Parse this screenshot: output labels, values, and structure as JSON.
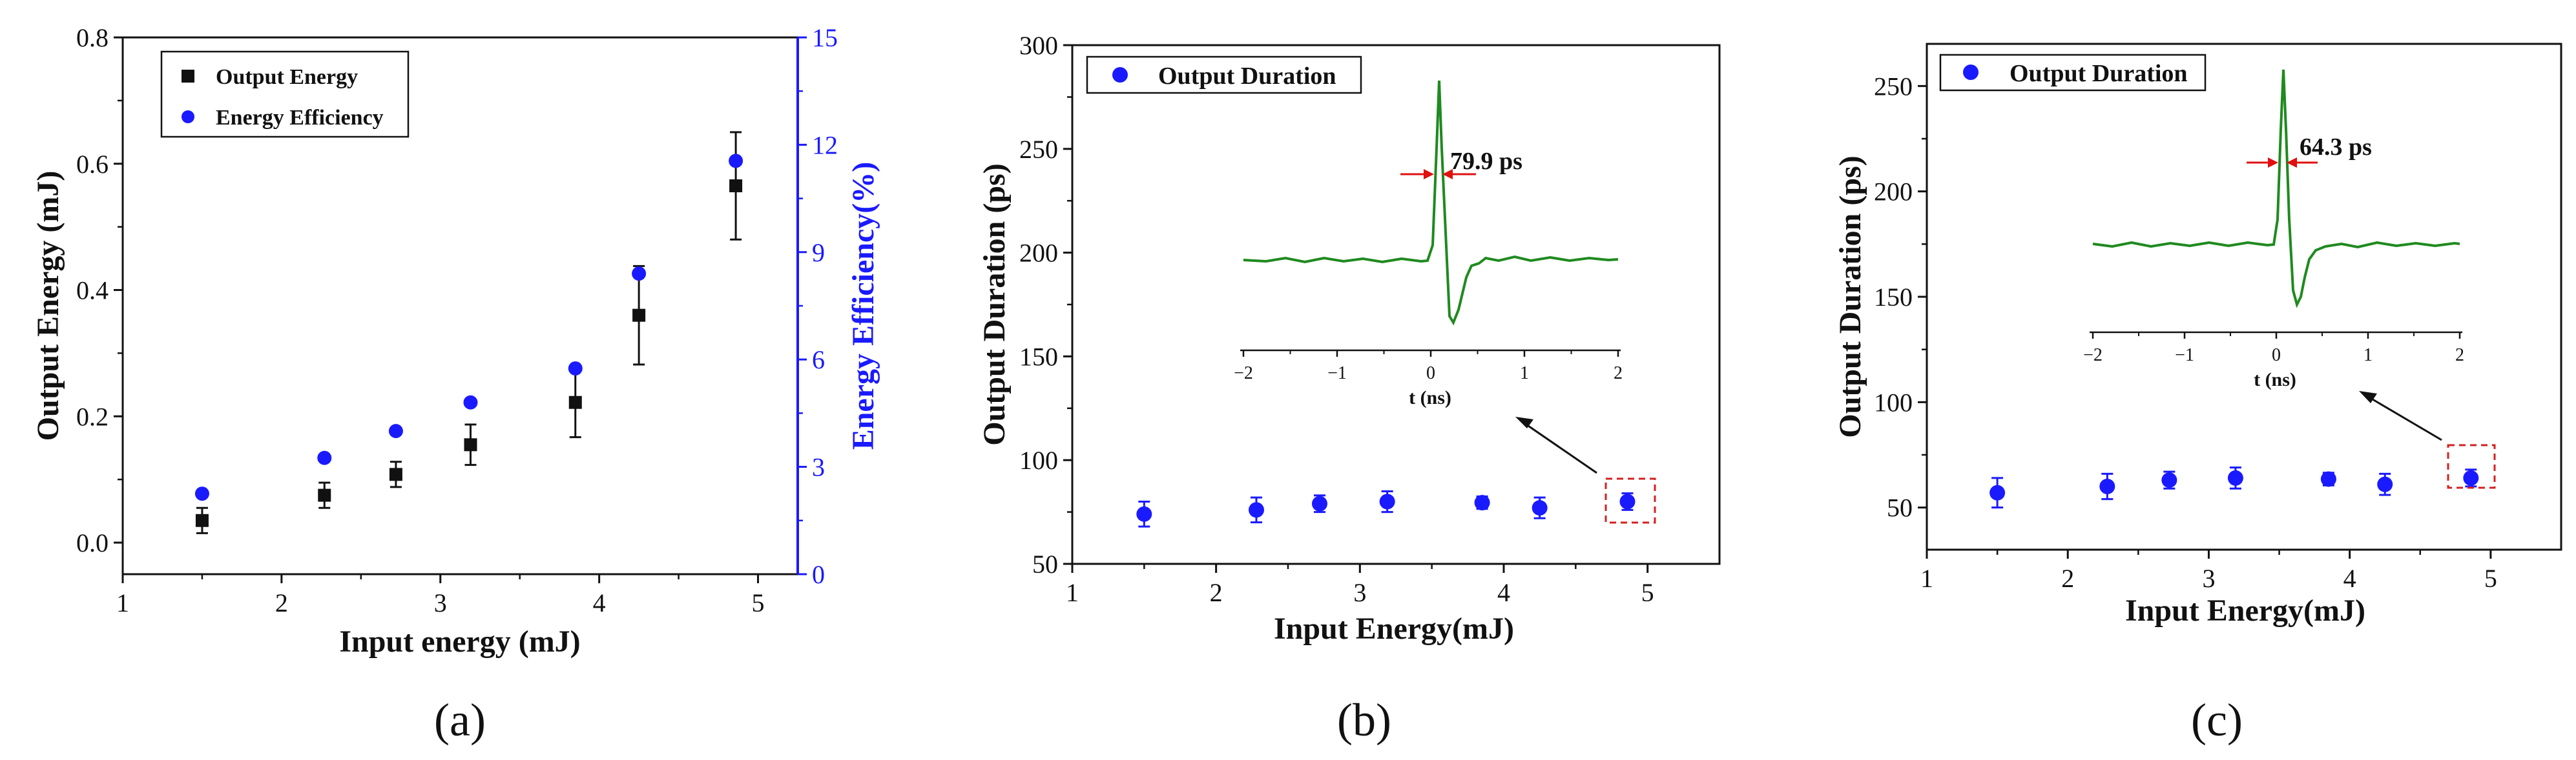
{
  "colors": {
    "axis": "#111111",
    "blue": "#1a1aff",
    "black": "#111111",
    "green": "#1f8a1f",
    "red": "#e01010",
    "dashed_box": "#d42020"
  },
  "chart_data": [
    {
      "panel": "a",
      "type": "scatter",
      "caption": "(a)",
      "xlabel": "Input energy (mJ)",
      "ylabel": "Output Energy (mJ)",
      "y2label": "Energy Efficiency(%)",
      "xlim": [
        1,
        5.25
      ],
      "ylim": [
        -0.05,
        0.8
      ],
      "y2lim": [
        0,
        15
      ],
      "xticks": [
        "1",
        "2",
        "3",
        "4",
        "5"
      ],
      "yticks": [
        "0.0",
        "0.2",
        "0.4",
        "0.6",
        "0.8"
      ],
      "y2ticks": [
        "0",
        "3",
        "6",
        "9",
        "12",
        "15"
      ],
      "legend": [
        "Output Energy",
        "Energy Efficiency"
      ],
      "legend_position": "top-left",
      "series": [
        {
          "name": "Output Energy",
          "marker": "square",
          "color": "#111111",
          "x": [
            1.5,
            2.27,
            2.72,
            3.19,
            3.85,
            4.25,
            4.86
          ],
          "y": [
            0.035,
            0.075,
            0.108,
            0.155,
            0.222,
            0.36,
            0.565
          ],
          "err": [
            0.02,
            0.02,
            0.02,
            0.032,
            0.055,
            0.078,
            0.085
          ]
        },
        {
          "name": "Energy Efficiency",
          "marker": "circle",
          "color": "#1a1aff",
          "axis": "right",
          "x": [
            1.5,
            2.27,
            2.72,
            3.19,
            3.85,
            4.25,
            4.86
          ],
          "y": [
            2.25,
            3.25,
            4.0,
            4.8,
            5.75,
            8.4,
            11.55
          ]
        }
      ]
    },
    {
      "panel": "b",
      "type": "scatter",
      "caption": "(b)",
      "xlabel": "Input Energy(mJ)",
      "ylabel": "Output Duration (ps)",
      "xlim": [
        1,
        5.5
      ],
      "ylim": [
        50,
        300
      ],
      "xticks": [
        "1",
        "2",
        "3",
        "4",
        "5"
      ],
      "yticks": [
        "50",
        "100",
        "150",
        "200",
        "250",
        "300"
      ],
      "legend": [
        "Output Duration"
      ],
      "legend_position": "top-left",
      "series": [
        {
          "name": "Output Duration",
          "marker": "circle",
          "color": "#1a1aff",
          "x": [
            1.5,
            2.28,
            2.72,
            3.19,
            3.85,
            4.25,
            4.86
          ],
          "y": [
            74,
            76,
            79,
            80,
            79.5,
            77,
            80
          ],
          "err": [
            6,
            6,
            4,
            5,
            3,
            5,
            4
          ]
        }
      ],
      "inset": {
        "xlabel": "t (ns)",
        "xticks": [
          "-2",
          "-1",
          "0",
          "1",
          "2"
        ],
        "annotation": "79.9 ps"
      }
    },
    {
      "panel": "c",
      "type": "scatter",
      "caption": "(c)",
      "xlabel": "Input Energy(mJ)",
      "ylabel": "Output Duration (ps)",
      "xlim": [
        1,
        5.5
      ],
      "ylim": [
        30,
        270
      ],
      "xticks": [
        "1",
        "2",
        "3",
        "4",
        "5"
      ],
      "yticks": [
        "50",
        "100",
        "150",
        "200",
        "250"
      ],
      "legend": [
        "Output Duration"
      ],
      "legend_position": "top-left",
      "series": [
        {
          "name": "Output Duration",
          "marker": "circle",
          "color": "#1a1aff",
          "x": [
            1.5,
            2.28,
            2.72,
            3.19,
            3.85,
            4.25,
            4.86
          ],
          "y": [
            57,
            60,
            63,
            64,
            63.5,
            61,
            64
          ],
          "err": [
            7,
            6,
            4,
            5,
            3,
            5,
            4
          ]
        }
      ],
      "inset": {
        "xlabel": "t (ns)",
        "xticks": [
          "-2",
          "-1",
          "0",
          "1",
          "2"
        ],
        "annotation": "64.3 ps"
      }
    }
  ]
}
